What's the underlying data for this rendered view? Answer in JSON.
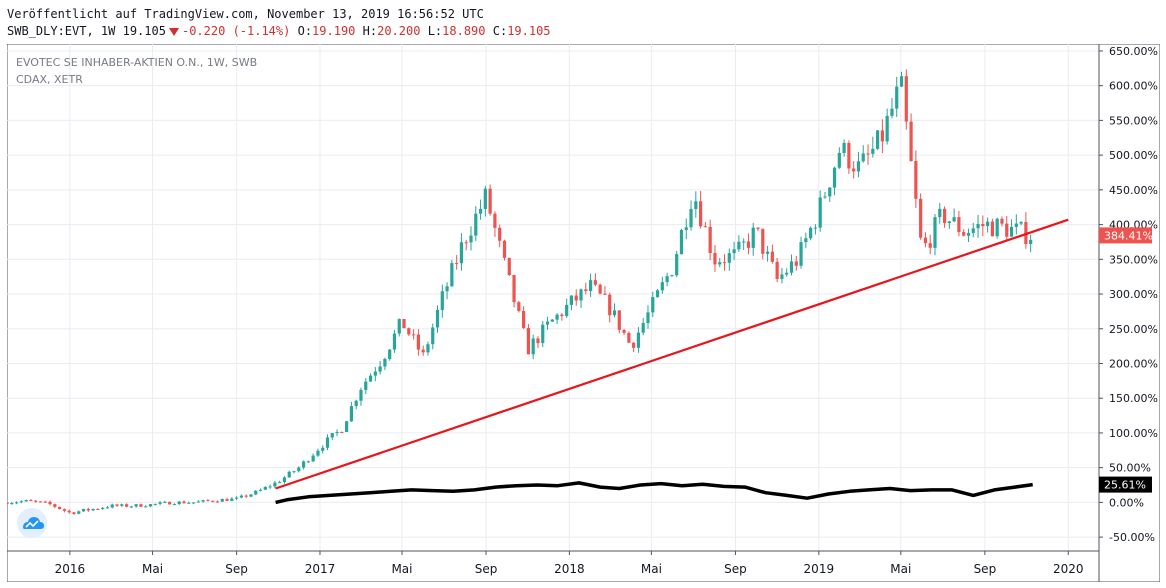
{
  "header": {
    "published": "Veröffentlicht auf TradingView.com, November 13, 2019 16:56:52 UTC",
    "symbol": "SWB_DLY:EVT, 1W",
    "last": "19.105",
    "change": "-0.220",
    "change_pct": "(-1.14%)",
    "open_label": "O:",
    "open": "19.190",
    "high_label": "H:",
    "high": "20.200",
    "low_label": "L:",
    "low": "18.890",
    "close_label": "C:",
    "close": "19.105"
  },
  "legend": {
    "line1": "EVOTEC SE INHABER-AKTIEN O.N., 1W, SWB",
    "line2": "CDAX, XETR"
  },
  "colors": {
    "up": "#26a69a",
    "down": "#ef5350",
    "trendline": "#e8151b",
    "index_line": "#000000",
    "grid": "#e9ecf2",
    "price_badge": "#ef5350",
    "index_badge": "#000000"
  },
  "logo_icon": "tradingview-cloud-icon",
  "chart_data": {
    "type": "line",
    "y_axis": {
      "min": -70,
      "max": 660,
      "unit": "%",
      "ticks": [
        -50,
        0,
        50,
        100,
        150,
        200,
        250,
        300,
        350,
        400,
        450,
        500,
        550,
        600,
        650
      ],
      "tick_labels": [
        "-50.00%",
        "0.00%",
        "50.00%",
        "100.00%",
        "150.00%",
        "200.00%",
        "250.00%",
        "300.00%",
        "350.00%",
        "400.00%",
        "450.00%",
        "500.00%",
        "550.00%",
        "600.00%",
        "650.00%"
      ]
    },
    "x_axis": {
      "min": "2015-10-01",
      "max": "2020-02-15",
      "ticks": [
        "2016-01-01",
        "2016-05-01",
        "2016-09-01",
        "2017-01-01",
        "2017-05-01",
        "2017-09-01",
        "2018-01-01",
        "2018-05-01",
        "2018-09-01",
        "2019-01-01",
        "2019-05-01",
        "2019-09-01",
        "2020-01-01"
      ],
      "tick_labels": [
        "2016",
        "Mai",
        "Sep",
        "2017",
        "Mai",
        "Sep",
        "2018",
        "Mai",
        "Sep",
        "2019",
        "Mai",
        "Sep",
        "2020"
      ]
    },
    "grid": true,
    "series": [
      {
        "name": "EVOTEC SE INHABER-AKTIEN O.N., 1W, SWB",
        "style": "candles",
        "x": [
          "2015-10-01",
          "2015-11-01",
          "2015-12-01",
          "2016-01-01",
          "2016-02-01",
          "2016-03-01",
          "2016-04-01",
          "2016-05-01",
          "2016-06-01",
          "2016-07-01",
          "2016-08-01",
          "2016-09-01",
          "2016-10-01",
          "2016-11-01",
          "2016-12-01",
          "2017-01-01",
          "2017-02-01",
          "2017-03-01",
          "2017-04-01",
          "2017-05-01",
          "2017-06-01",
          "2017-07-01",
          "2017-08-01",
          "2017-09-01",
          "2017-10-01",
          "2017-11-01",
          "2017-12-01",
          "2018-01-01",
          "2018-02-01",
          "2018-03-01",
          "2018-04-01",
          "2018-05-01",
          "2018-06-01",
          "2018-07-01",
          "2018-08-01",
          "2018-09-01",
          "2018-10-01",
          "2018-11-01",
          "2018-12-01",
          "2019-01-01",
          "2019-02-01",
          "2019-03-01",
          "2019-04-01",
          "2019-05-01",
          "2019-06-01",
          "2019-07-01",
          "2019-08-01",
          "2019-09-01",
          "2019-10-01",
          "2019-11-10"
        ],
        "values": [
          0,
          2,
          -2,
          -15,
          -10,
          -5,
          -5,
          -3,
          0,
          0,
          3,
          5,
          15,
          30,
          50,
          80,
          105,
          165,
          205,
          260,
          210,
          300,
          380,
          440,
          330,
          220,
          255,
          285,
          310,
          280,
          225,
          280,
          340,
          450,
          350,
          355,
          390,
          320,
          350,
          420,
          510,
          480,
          520,
          600,
          360,
          415,
          390,
          400,
          395,
          384.41
        ]
      },
      {
        "name": "CDAX, XETR",
        "style": "line",
        "x": [
          "2016-10-28",
          "2016-11-15",
          "2016-12-15",
          "2017-01-15",
          "2017-02-15",
          "2017-03-15",
          "2017-04-15",
          "2017-05-15",
          "2017-06-15",
          "2017-07-15",
          "2017-08-15",
          "2017-09-15",
          "2017-10-15",
          "2017-11-15",
          "2017-12-15",
          "2018-01-15",
          "2018-02-15",
          "2018-03-15",
          "2018-04-15",
          "2018-05-15",
          "2018-06-15",
          "2018-07-15",
          "2018-08-15",
          "2018-09-15",
          "2018-10-15",
          "2018-11-15",
          "2018-12-15",
          "2019-01-15",
          "2019-02-15",
          "2019-03-15",
          "2019-04-15",
          "2019-05-15",
          "2019-06-15",
          "2019-07-15",
          "2019-08-15",
          "2019-09-15",
          "2019-10-15",
          "2019-11-10"
        ],
        "values": [
          0,
          4,
          8,
          10,
          12,
          14,
          16,
          18,
          17,
          16,
          18,
          22,
          24,
          25,
          24,
          28,
          22,
          20,
          25,
          27,
          24,
          26,
          23,
          22,
          14,
          10,
          6,
          12,
          16,
          18,
          20,
          17,
          18,
          18,
          10,
          18,
          22,
          25.61
        ]
      }
    ],
    "trendline": {
      "x": [
        "2016-10-28",
        "2020-01-01"
      ],
      "y": [
        20,
        407
      ]
    },
    "last_value_labels": [
      "384.41%",
      "25.61%"
    ]
  }
}
